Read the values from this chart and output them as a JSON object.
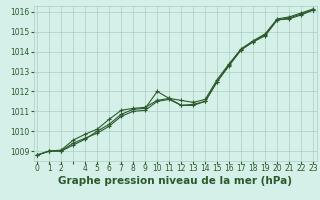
{
  "title": "Graphe pression niveau de la mer (hPa)",
  "background_color": "#d4f0e8",
  "grid_color": "#a8cfc0",
  "line_color": "#2d5a2d",
  "hours": [
    0,
    1,
    2,
    3,
    4,
    5,
    6,
    7,
    8,
    9,
    10,
    11,
    12,
    13,
    14,
    15,
    16,
    17,
    18,
    19,
    20,
    21,
    22,
    23
  ],
  "series1": [
    1008.8,
    1009.0,
    1009.0,
    1009.4,
    1009.65,
    1009.9,
    1010.25,
    1010.75,
    1011.0,
    1011.05,
    1011.5,
    1011.6,
    1011.3,
    1011.3,
    1011.5,
    1012.5,
    1013.3,
    1014.1,
    1014.5,
    1014.8,
    1015.6,
    1015.65,
    1015.85,
    1016.1
  ],
  "series2": [
    1008.8,
    1009.0,
    1009.0,
    1009.3,
    1009.6,
    1010.0,
    1010.35,
    1010.85,
    1011.1,
    1011.15,
    1012.0,
    1011.65,
    1011.3,
    1011.35,
    1011.5,
    1012.5,
    1013.35,
    1014.1,
    1014.5,
    1014.85,
    1015.6,
    1015.7,
    1015.9,
    1016.1
  ],
  "series3": [
    1008.8,
    1009.0,
    1009.05,
    1009.55,
    1009.85,
    1010.1,
    1010.6,
    1011.05,
    1011.15,
    1011.2,
    1011.55,
    1011.65,
    1011.55,
    1011.45,
    1011.6,
    1012.6,
    1013.4,
    1014.15,
    1014.55,
    1014.9,
    1015.65,
    1015.75,
    1015.95,
    1016.15
  ],
  "ylim": [
    1008.5,
    1016.3
  ],
  "yticks": [
    1009,
    1010,
    1011,
    1012,
    1013,
    1014,
    1015,
    1016
  ],
  "xlim": [
    -0.3,
    23.3
  ],
  "xtick_labels": [
    "0",
    "1",
    "2",
    "",
    "4",
    "5",
    "6",
    "7",
    "8",
    "9",
    "10",
    "11",
    "12",
    "13",
    "14",
    "15",
    "16",
    "17",
    "18",
    "19",
    "20",
    "21",
    "22",
    "23"
  ],
  "marker": "+",
  "markersize": 3,
  "linewidth": 0.8,
  "title_fontsize": 7.5,
  "tick_fontsize": 5.5
}
